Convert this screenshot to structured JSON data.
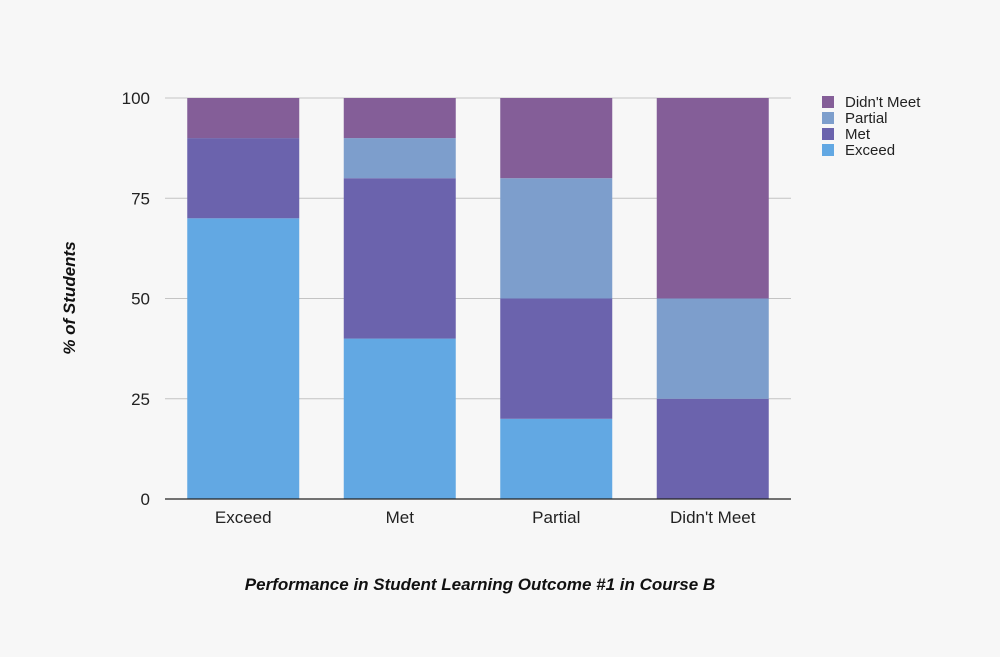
{
  "chart_data": {
    "type": "bar",
    "stacked": true,
    "title": "",
    "xlabel": "Performance in Student Learning Outcome #1 in Course B",
    "ylabel": "% of Students",
    "ylim": [
      0,
      100
    ],
    "yticks": [
      0,
      25,
      50,
      75,
      100
    ],
    "grid": true,
    "legend_position": "top-right",
    "categories": [
      "Exceed",
      "Met",
      "Partial",
      "Didn't Meet"
    ],
    "series": [
      {
        "name": "Exceed",
        "color": "#62a8e3",
        "values": [
          70,
          40,
          20,
          0
        ]
      },
      {
        "name": "Met",
        "color": "#6b63ad",
        "values": [
          20,
          40,
          30,
          25
        ]
      },
      {
        "name": "Partial",
        "color": "#7d9ecc",
        "values": [
          0,
          10,
          30,
          25
        ]
      },
      {
        "name": "Didn't Meet",
        "color": "#845e98",
        "values": [
          10,
          10,
          20,
          50
        ]
      }
    ],
    "legend_order": [
      "Didn't Meet",
      "Partial",
      "Met",
      "Exceed"
    ]
  }
}
